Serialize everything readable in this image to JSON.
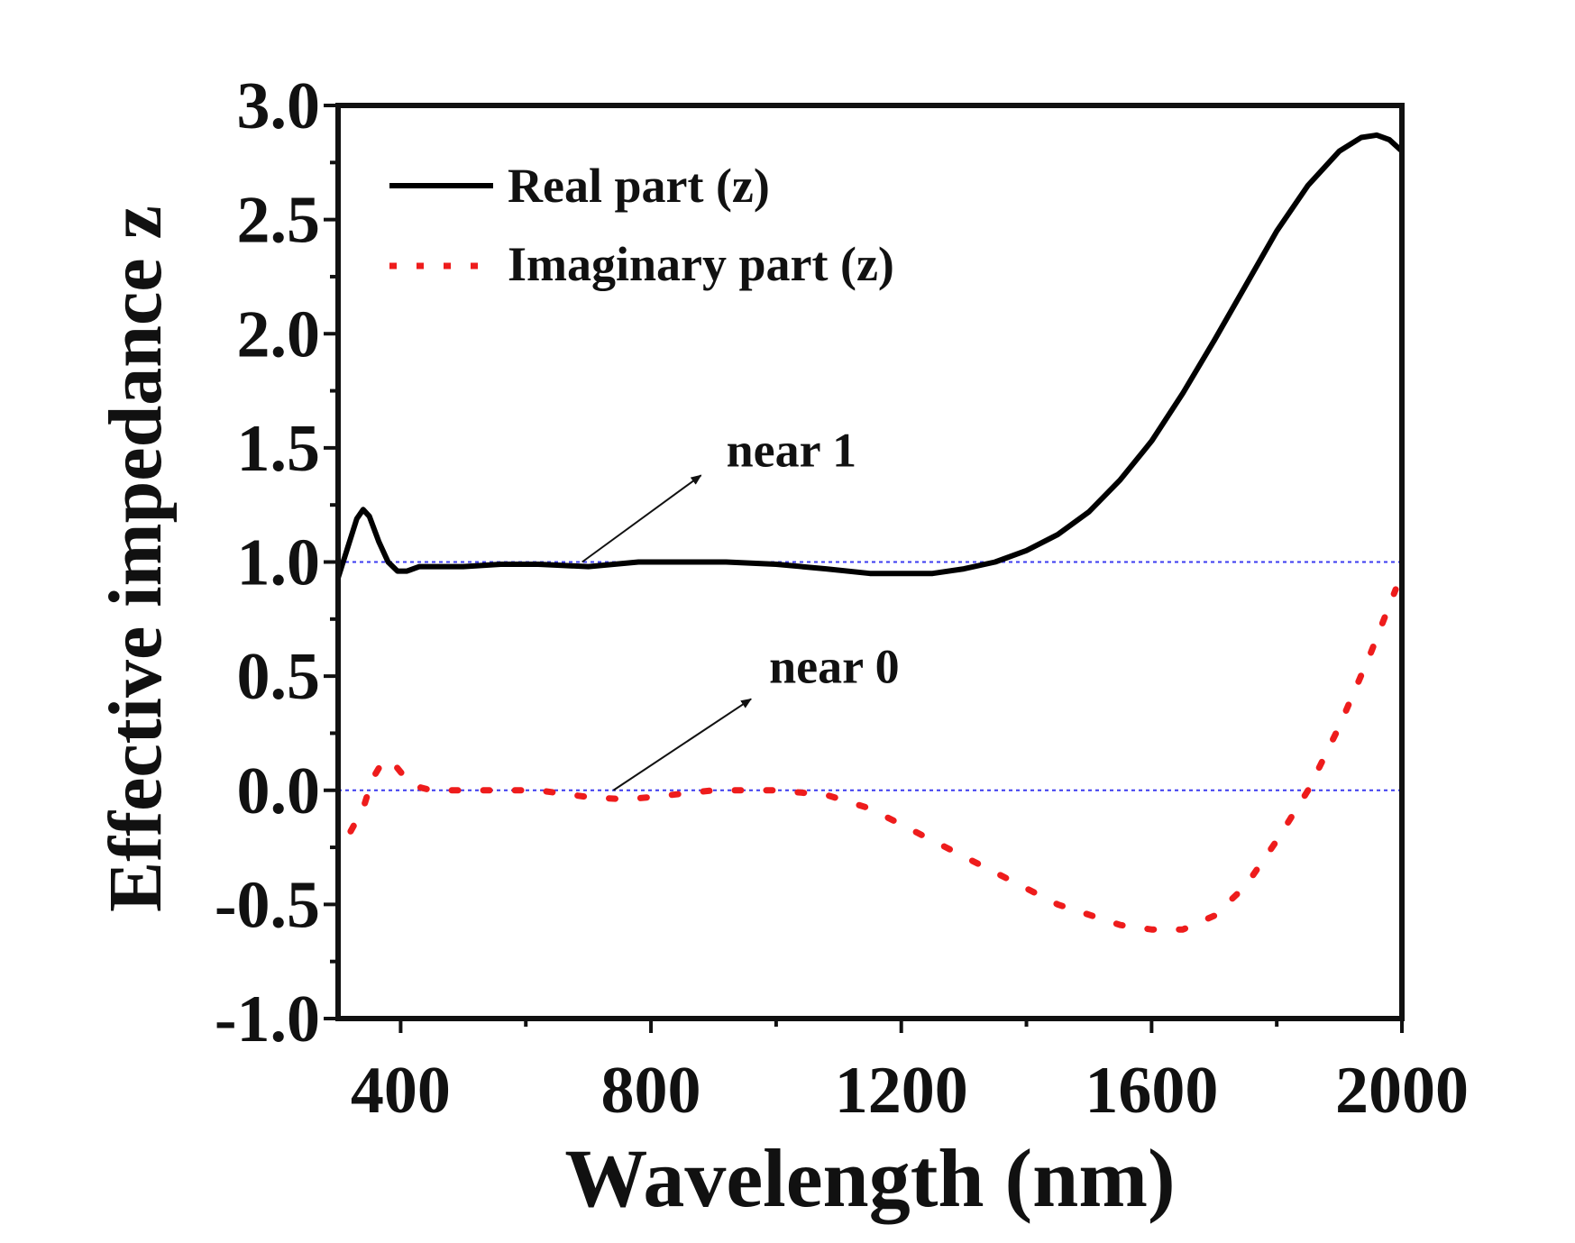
{
  "chart_data": {
    "type": "line",
    "title": "",
    "xlabel": "Wavelength (nm)",
    "ylabel": "Effective impedance z",
    "xlim": [
      300,
      2000
    ],
    "ylim": [
      -1.0,
      3.0
    ],
    "xticks": [
      400,
      800,
      1200,
      1600,
      2000
    ],
    "yticks": [
      -1.0,
      -0.5,
      0.0,
      0.5,
      1.0,
      1.5,
      2.0,
      2.5,
      3.0
    ],
    "xtick_labels": [
      "400",
      "800",
      "1200",
      "1600",
      "2000"
    ],
    "ytick_labels": [
      "-1.0",
      "-0.5",
      "0.0",
      "0.5",
      "1.0",
      "1.5",
      "2.0",
      "2.5",
      "3.0"
    ],
    "grid": false,
    "legend_position": "top-left",
    "reference_lines": [
      {
        "y": 1.0,
        "color": "#3b3bf0",
        "style": "dotted"
      },
      {
        "y": 0.0,
        "color": "#3b3bf0",
        "style": "dotted"
      }
    ],
    "series": [
      {
        "name": "Real part (z)",
        "color": "#000000",
        "style": "solid",
        "x": [
          300,
          315,
          330,
          340,
          350,
          365,
          380,
          395,
          410,
          430,
          460,
          500,
          560,
          620,
          700,
          780,
          850,
          920,
          1000,
          1080,
          1150,
          1200,
          1250,
          1300,
          1350,
          1400,
          1450,
          1500,
          1550,
          1600,
          1650,
          1700,
          1750,
          1800,
          1850,
          1900,
          1935,
          1960,
          1980,
          2000
        ],
        "values": [
          0.93,
          1.06,
          1.19,
          1.23,
          1.2,
          1.09,
          1.0,
          0.96,
          0.96,
          0.98,
          0.98,
          0.98,
          0.99,
          0.99,
          0.98,
          1.0,
          1.0,
          1.0,
          0.99,
          0.97,
          0.95,
          0.95,
          0.95,
          0.97,
          1.0,
          1.05,
          1.12,
          1.22,
          1.36,
          1.53,
          1.74,
          1.97,
          2.21,
          2.45,
          2.65,
          2.8,
          2.86,
          2.87,
          2.85,
          2.8
        ]
      },
      {
        "name": "Imaginary part (z)",
        "color": "#ee1c1c",
        "style": "dotted",
        "x": [
          320,
          340,
          355,
          370,
          385,
          400,
          420,
          450,
          500,
          560,
          620,
          700,
          760,
          800,
          900,
          1000,
          1080,
          1150,
          1250,
          1350,
          1450,
          1550,
          1600,
          1650,
          1700,
          1750,
          1800,
          1850,
          1900,
          1950,
          1990
        ],
        "values": [
          -0.18,
          -0.08,
          0.05,
          0.12,
          0.13,
          0.08,
          0.02,
          0.0,
          0.0,
          0.0,
          0.0,
          -0.03,
          -0.04,
          -0.03,
          0.0,
          0.0,
          -0.02,
          -0.08,
          -0.22,
          -0.36,
          -0.5,
          -0.59,
          -0.61,
          -0.61,
          -0.55,
          -0.42,
          -0.22,
          0.0,
          0.28,
          0.6,
          0.88
        ]
      }
    ],
    "annotations": [
      {
        "text": "near 1",
        "arrow_from": [
          690,
          1.0
        ],
        "arrow_to": [
          880,
          1.38
        ]
      },
      {
        "text": "near 0",
        "arrow_from": [
          740,
          0.0
        ],
        "arrow_to": [
          960,
          0.4
        ]
      }
    ]
  }
}
